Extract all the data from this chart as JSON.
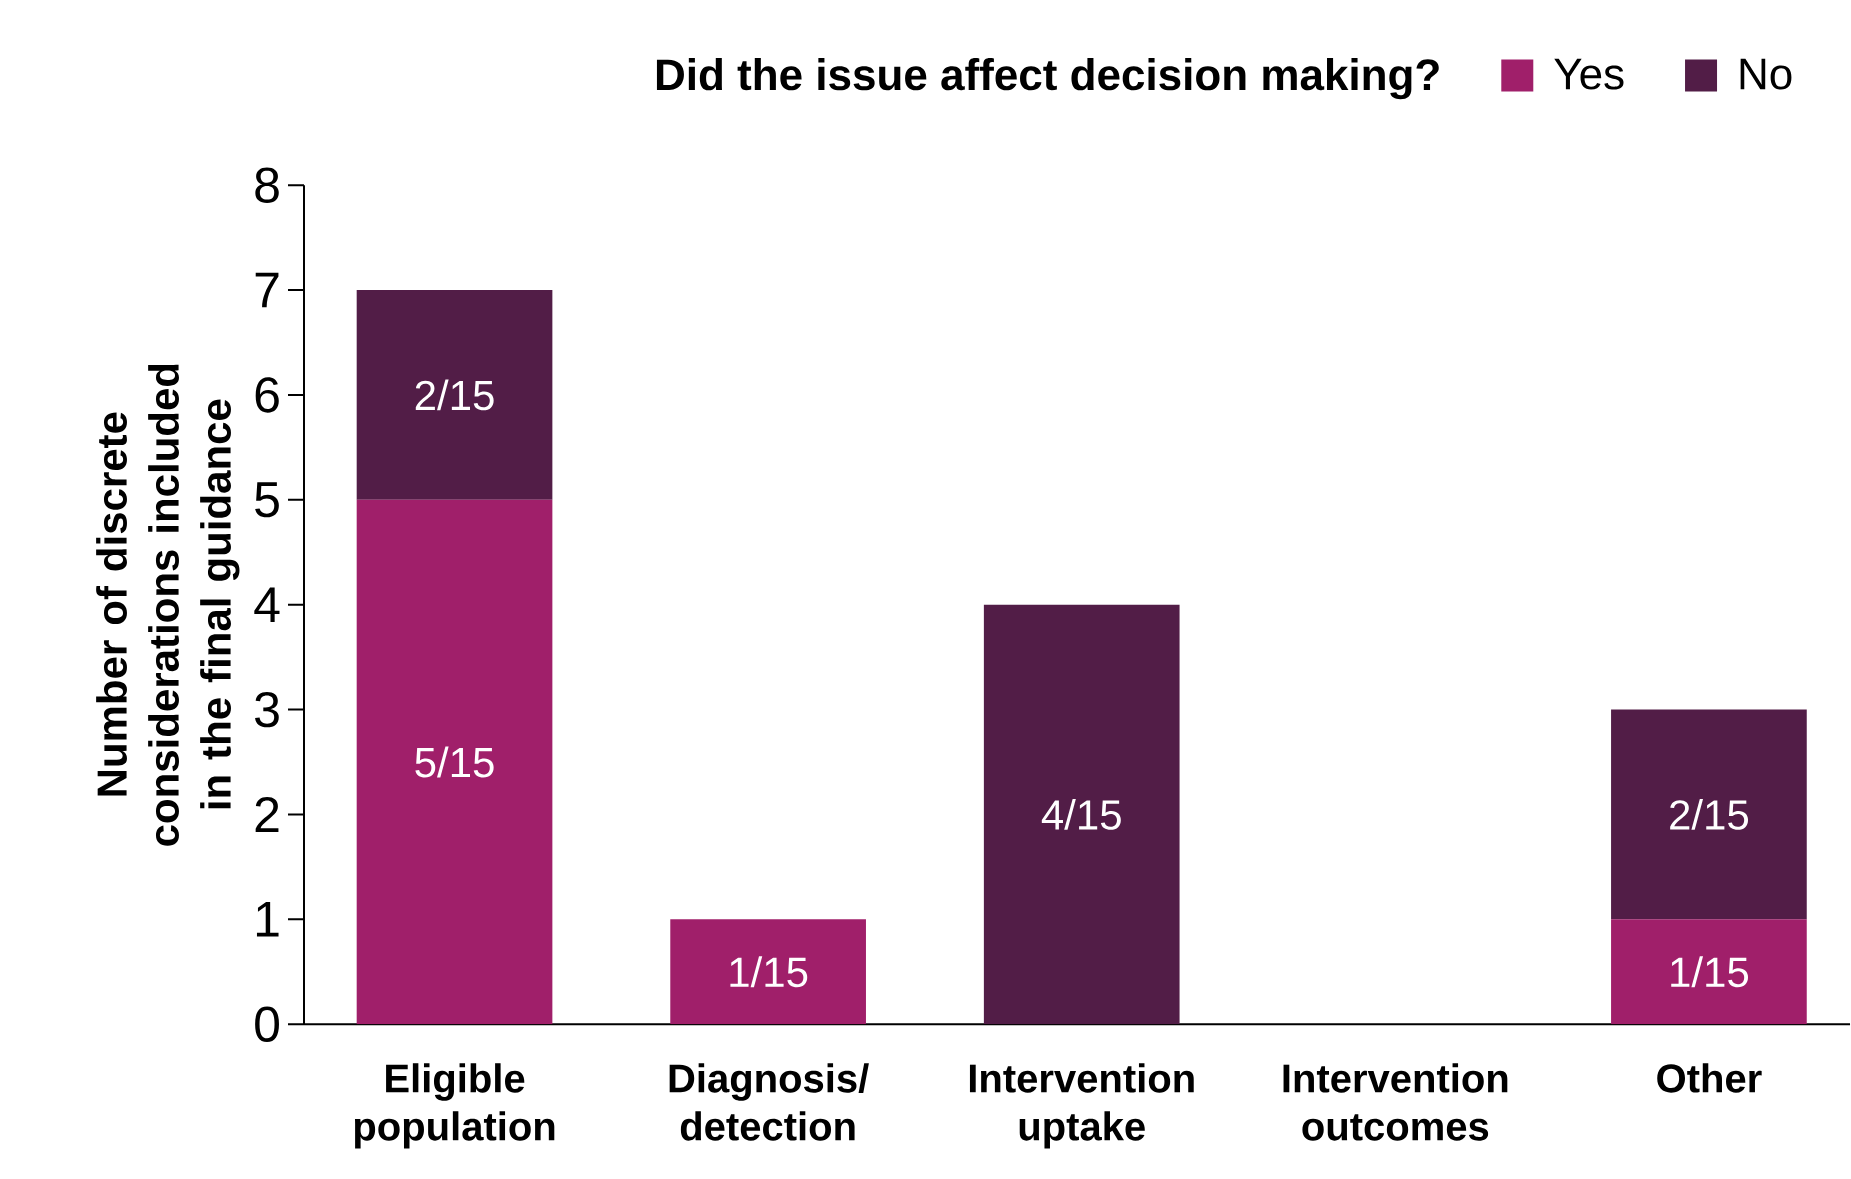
{
  "chart_data": {
    "type": "bar",
    "stacked": true,
    "legend_title": "Did the issue affect decision making?",
    "legend": "top right",
    "ylabel": "Number of discrete considerations included in the final guidance",
    "categories": [
      "Eligible population",
      "Diagnosis/ detection",
      "Intervention uptake",
      "Intervention outcomes",
      "Other"
    ],
    "ylim": [
      0,
      8
    ],
    "yticks": [
      0,
      1,
      2,
      3,
      4,
      5,
      6,
      7,
      8
    ],
    "series": [
      {
        "name": "Yes",
        "color": "#a01f6a",
        "values": [
          5,
          1,
          0,
          0,
          1
        ],
        "value_labels": [
          "5/15",
          "1/15",
          null,
          null,
          "1/15"
        ]
      },
      {
        "name": "No",
        "color": "#521d47",
        "values": [
          2,
          0,
          4,
          0,
          2
        ],
        "value_labels": [
          "2/15",
          null,
          "4/15",
          null,
          "2/15"
        ]
      }
    ]
  }
}
